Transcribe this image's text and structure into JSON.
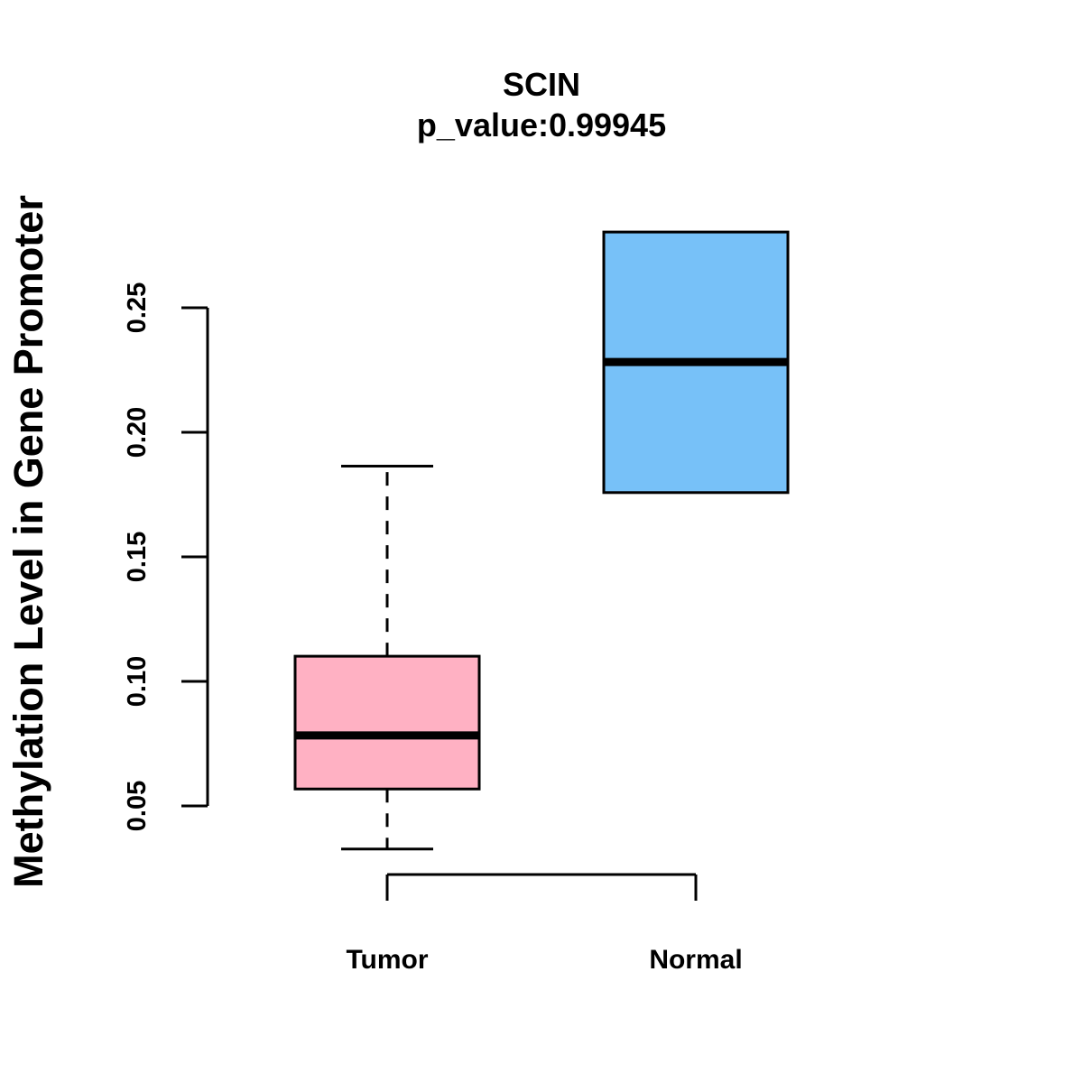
{
  "chart_data": {
    "type": "boxplot",
    "title": "SCIN",
    "subtitle": "p_value:0.99945",
    "xlabel": "",
    "ylabel": "Methylation Level in Gene Promoter",
    "ylim": [
      0.05,
      0.25
    ],
    "yticks": [
      0.05,
      0.1,
      0.15,
      0.2,
      0.25
    ],
    "ytick_labels": [
      "0.05",
      "0.10",
      "0.15",
      "0.20",
      "0.25"
    ],
    "categories": [
      "Tumor",
      "Normal"
    ],
    "series": [
      {
        "name": "Tumor",
        "color": "#FFB1C3",
        "whisker_low": 0.0327,
        "q1": 0.0568,
        "median": 0.0783,
        "q3": 0.1101,
        "whisker_high": 0.1864
      },
      {
        "name": "Normal",
        "color": "#77C1F8",
        "whisker_low": 0.1758,
        "q1": 0.1758,
        "median": 0.2282,
        "q3": 0.2804,
        "whisker_high": 0.2804
      }
    ],
    "grid": false,
    "legend": "none"
  }
}
